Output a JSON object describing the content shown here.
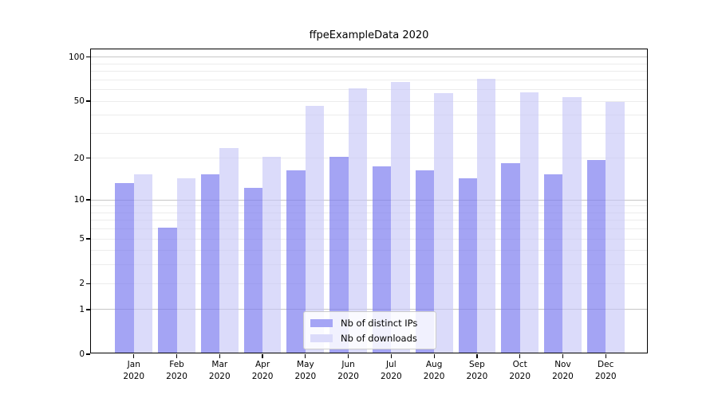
{
  "chart_data": {
    "type": "bar",
    "title": "ffpeExampleData 2020",
    "categories": [
      "Jan 2020",
      "Feb 2020",
      "Mar 2020",
      "Apr 2020",
      "May 2020",
      "Jun 2020",
      "Jul 2020",
      "Aug 2020",
      "Sep 2020",
      "Oct 2020",
      "Nov 2020",
      "Dec 2020"
    ],
    "x_tick_labels": [
      [
        "Jan",
        "2020"
      ],
      [
        "Feb",
        "2020"
      ],
      [
        "Mar",
        "2020"
      ],
      [
        "Apr",
        "2020"
      ],
      [
        "May",
        "2020"
      ],
      [
        "Jun",
        "2020"
      ],
      [
        "Jul",
        "2020"
      ],
      [
        "Aug",
        "2020"
      ],
      [
        "Sep",
        "2020"
      ],
      [
        "Oct",
        "2020"
      ],
      [
        "Nov",
        "2020"
      ],
      [
        "Dec",
        "2020"
      ]
    ],
    "series": [
      {
        "name": "Nb of distinct IPs",
        "key": "distinct-ips",
        "color": "rgba(126,126,240,0.70)",
        "color_solid": "#a5a5f5",
        "values": [
          13,
          6,
          15,
          12,
          16,
          20,
          17,
          16,
          14,
          18,
          15,
          19
        ]
      },
      {
        "name": "Nb of downloads",
        "key": "downloads",
        "color": "rgba(197,197,247,0.62)",
        "color_solid": "#dbdbfa",
        "values": [
          15,
          14,
          23,
          20,
          45,
          60,
          66,
          55,
          69,
          56,
          52,
          48
        ]
      }
    ],
    "xlabel": "",
    "ylabel": "",
    "yscale": "log1p",
    "ylim": [
      0,
      113
    ],
    "y_ticks": [
      0,
      1,
      2,
      5,
      10,
      20,
      50,
      100
    ],
    "y_tick_labels": [
      "0",
      "1",
      "2",
      "5",
      "10",
      "20",
      "50",
      "100"
    ],
    "grid": {
      "on": true,
      "major_values": [
        1,
        10,
        100
      ],
      "minor_values": [
        2,
        3,
        4,
        5,
        6,
        7,
        8,
        9,
        20,
        30,
        40,
        50,
        60,
        70,
        80,
        90
      ],
      "major_color": "#c6c6c6",
      "minor_color": "#ececec"
    },
    "legend": {
      "position": "bottom-center",
      "entries": [
        "Nb of distinct IPs",
        "Nb of downloads"
      ]
    },
    "background_color": "#ffffff",
    "spine_color": "#000000"
  }
}
